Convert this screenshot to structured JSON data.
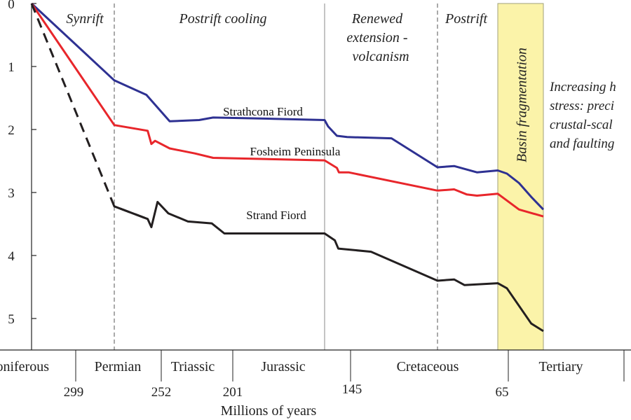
{
  "chart_data": {
    "type": "line",
    "title": "",
    "xlabel": "Millions of years",
    "ylabel": "",
    "x_direction": "decreasing age to the right",
    "ylim": [
      0,
      5.5
    ],
    "y_inverted": true,
    "y_ticks": [
      "0",
      "1",
      "2",
      "3",
      "4",
      "5"
    ],
    "age_ticks": [
      {
        "label": "299",
        "value": 299
      },
      {
        "label": "252",
        "value": 252
      },
      {
        "label": "201",
        "value": 201
      },
      {
        "label": "145",
        "value": 145
      },
      {
        "label": "65",
        "value": 65
      }
    ],
    "periods": [
      "Carboniferous",
      "Permian",
      "Triassic",
      "Jurassic",
      "Cretaceous",
      "Tertiary"
    ],
    "phases": [
      {
        "label": "Synrift",
        "lines": [
          "Synrift"
        ]
      },
      {
        "label": "Postrift cooling",
        "lines": [
          "Postrift cooling"
        ]
      },
      {
        "label": "Renewed extension - volcanism",
        "lines": [
          "Renewed",
          "extension -",
          "volcanism"
        ]
      },
      {
        "label": "Postrift",
        "lines": [
          "Postrift"
        ]
      }
    ],
    "highlight": {
      "label": "Basin fragmentation",
      "color": "#fbf3a9",
      "border": "#a0a07a"
    },
    "annotation": {
      "lines": [
        "Increasing h",
        "stress: preci",
        "crustal-scal",
        "and faulting"
      ]
    },
    "grid": false,
    "legend": "none (series labelled directly on lines)",
    "series": [
      {
        "name": "Strathcona Fiord",
        "color": "#2e3192",
        "style": "solid",
        "points": [
          [
            330,
            0.0
          ],
          [
            290,
            1.22
          ],
          [
            264,
            1.45
          ],
          [
            246,
            1.87
          ],
          [
            225,
            1.85
          ],
          [
            215,
            1.81
          ],
          [
            193,
            1.83
          ],
          [
            183,
            1.85
          ],
          [
            178,
            1.95
          ],
          [
            165,
            2.1
          ],
          [
            150,
            2.12
          ],
          [
            137,
            2.14
          ],
          [
            128,
            2.6
          ],
          [
            120,
            2.58
          ],
          [
            109,
            2.68
          ],
          [
            99,
            2.65
          ],
          [
            96,
            2.7
          ],
          [
            92,
            2.85
          ],
          [
            88,
            3.07
          ],
          [
            84,
            3.27
          ]
        ]
      },
      {
        "name": "Fosheim Peninsula",
        "color": "#e8262b",
        "style": "solid",
        "points": [
          [
            330,
            0.0
          ],
          [
            290,
            1.93
          ],
          [
            263,
            2.02
          ],
          [
            260,
            2.23
          ],
          [
            257,
            2.18
          ],
          [
            246,
            2.3
          ],
          [
            228,
            2.38
          ],
          [
            215,
            2.45
          ],
          [
            183,
            2.49
          ],
          [
            165,
            2.61
          ],
          [
            162,
            2.68
          ],
          [
            148,
            2.68
          ],
          [
            128,
            2.97
          ],
          [
            120,
            2.95
          ],
          [
            114,
            3.03
          ],
          [
            109,
            3.05
          ],
          [
            99,
            3.02
          ],
          [
            92,
            3.27
          ],
          [
            84,
            3.38
          ]
        ]
      },
      {
        "name": "Strand Fiord",
        "color": "#231f20",
        "style": "solid",
        "points": [
          [
            290,
            3.22
          ],
          [
            263,
            3.42
          ],
          [
            260,
            3.55
          ],
          [
            255,
            3.15
          ],
          [
            247,
            3.33
          ],
          [
            233,
            3.46
          ],
          [
            216,
            3.49
          ],
          [
            207,
            3.65
          ],
          [
            183,
            3.65
          ],
          [
            168,
            3.76
          ],
          [
            163,
            3.89
          ],
          [
            141,
            3.94
          ],
          [
            128,
            4.4
          ],
          [
            120,
            4.38
          ],
          [
            115,
            4.47
          ],
          [
            99,
            4.44
          ],
          [
            96,
            4.52
          ],
          [
            88,
            5.08
          ],
          [
            84,
            5.2
          ]
        ]
      },
      {
        "name": "",
        "color": "#231f20",
        "style": "dashed",
        "points": [
          [
            330,
            0.0
          ],
          [
            290,
            3.22
          ],
          [
            263,
            3.42
          ]
        ]
      }
    ]
  }
}
